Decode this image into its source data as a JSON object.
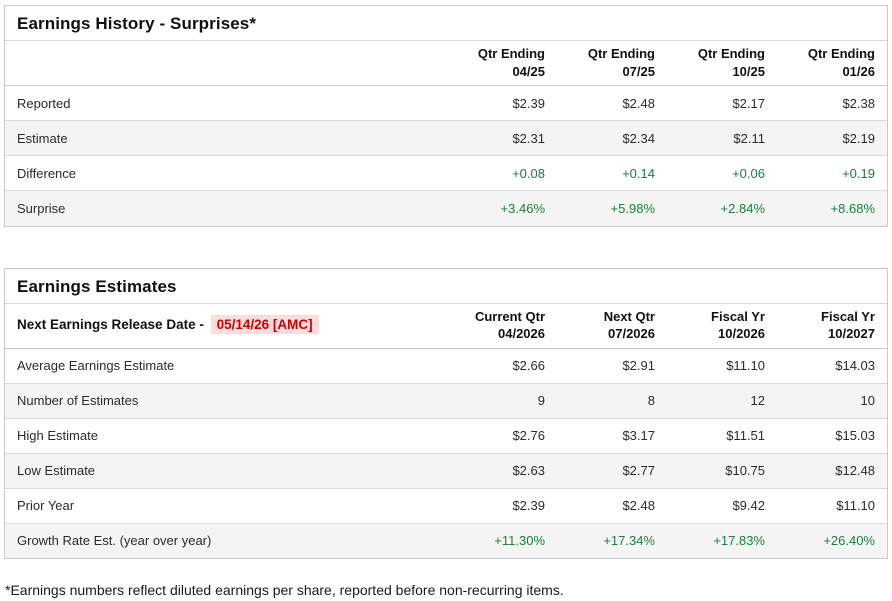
{
  "colors": {
    "positive_green": "#1a7d45",
    "alert_red": "#cc0000",
    "alert_red_bg": "#fbdcdc",
    "row_stripe": "#f4f4f4",
    "border": "#c9c9c9"
  },
  "history": {
    "title": "Earnings History - Surprises*",
    "columns": [
      {
        "l1": "Qtr Ending",
        "l2": "04/25"
      },
      {
        "l1": "Qtr Ending",
        "l2": "07/25"
      },
      {
        "l1": "Qtr Ending",
        "l2": "10/25"
      },
      {
        "l1": "Qtr Ending",
        "l2": "01/26"
      }
    ],
    "rows": [
      {
        "label": "Reported",
        "values": [
          "$2.39",
          "$2.48",
          "$2.17",
          "$2.38"
        ],
        "green": false
      },
      {
        "label": "Estimate",
        "values": [
          "$2.31",
          "$2.34",
          "$2.11",
          "$2.19"
        ],
        "green": false
      },
      {
        "label": "Difference",
        "values": [
          "+0.08",
          "+0.14",
          "+0.06",
          "+0.19"
        ],
        "green": true
      },
      {
        "label": "Surprise",
        "values": [
          "+3.46%",
          "+5.98%",
          "+2.84%",
          "+8.68%"
        ],
        "green": true
      }
    ]
  },
  "estimates": {
    "title": "Earnings Estimates",
    "release_label": "Next Earnings Release Date -",
    "release_date": "05/14/26 [AMC]",
    "columns": [
      {
        "l1": "Current Qtr",
        "l2": "04/2026"
      },
      {
        "l1": "Next Qtr",
        "l2": "07/2026"
      },
      {
        "l1": "Fiscal Yr",
        "l2": "10/2026"
      },
      {
        "l1": "Fiscal Yr",
        "l2": "10/2027"
      }
    ],
    "rows": [
      {
        "label": "Average Earnings Estimate",
        "values": [
          "$2.66",
          "$2.91",
          "$11.10",
          "$14.03"
        ],
        "green": false
      },
      {
        "label": "Number of Estimates",
        "values": [
          "9",
          "8",
          "12",
          "10"
        ],
        "green": false
      },
      {
        "label": "High Estimate",
        "values": [
          "$2.76",
          "$3.17",
          "$11.51",
          "$15.03"
        ],
        "green": false
      },
      {
        "label": "Low Estimate",
        "values": [
          "$2.63",
          "$2.77",
          "$10.75",
          "$12.48"
        ],
        "green": false
      },
      {
        "label": "Prior Year",
        "values": [
          "$2.39",
          "$2.48",
          "$9.42",
          "$11.10"
        ],
        "green": false
      },
      {
        "label": "Growth Rate Est. (year over year)",
        "values": [
          "+11.30%",
          "+17.34%",
          "+17.83%",
          "+26.40%"
        ],
        "green": true
      }
    ]
  },
  "footnote": "*Earnings numbers reflect diluted earnings per share, reported before non-recurring items."
}
